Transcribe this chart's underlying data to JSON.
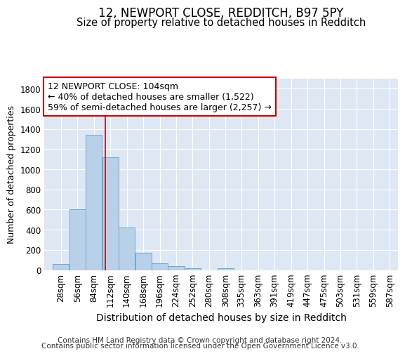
{
  "title1": "12, NEWPORT CLOSE, REDDITCH, B97 5PY",
  "title2": "Size of property relative to detached houses in Redditch",
  "xlabel": "Distribution of detached houses by size in Redditch",
  "ylabel": "Number of detached properties",
  "bin_labels": [
    "28sqm",
    "56sqm",
    "84sqm",
    "112sqm",
    "140sqm",
    "168sqm",
    "196sqm",
    "224sqm",
    "252sqm",
    "280sqm",
    "308sqm",
    "335sqm",
    "363sqm",
    "391sqm",
    "419sqm",
    "447sqm",
    "475sqm",
    "503sqm",
    "531sqm",
    "559sqm",
    "587sqm"
  ],
  "bin_lefts": [
    14,
    42,
    70,
    98,
    126,
    154,
    182,
    210,
    238,
    266,
    294,
    321,
    349,
    377,
    405,
    433,
    461,
    489,
    517,
    545,
    573
  ],
  "bin_width": 28,
  "bar_heights": [
    60,
    600,
    1340,
    1120,
    425,
    170,
    65,
    38,
    18,
    0,
    18,
    0,
    0,
    0,
    0,
    0,
    0,
    0,
    0,
    0,
    0
  ],
  "bar_color": "#b8d0e8",
  "bar_edge_color": "#6aaad4",
  "background_color": "#dde8f4",
  "grid_color": "#ffffff",
  "vline_x": 104,
  "vline_color": "#cc0000",
  "annotation_line1": "12 NEWPORT CLOSE: 104sqm",
  "annotation_line2": "← 40% of detached houses are smaller (1,522)",
  "annotation_line3": "59% of semi-detached houses are larger (2,257) →",
  "annotation_box_color": "#cc0000",
  "ylim": [
    0,
    1900
  ],
  "yticks": [
    0,
    200,
    400,
    600,
    800,
    1000,
    1200,
    1400,
    1600,
    1800
  ],
  "xlim_left": 0,
  "xlim_right": 601,
  "footnote_line1": "Contains HM Land Registry data © Crown copyright and database right 2024.",
  "footnote_line2": "Contains public sector information licensed under the Open Government Licence v3.0.",
  "title1_fontsize": 12,
  "title2_fontsize": 10.5,
  "xlabel_fontsize": 10,
  "ylabel_fontsize": 9,
  "tick_fontsize": 8.5,
  "annotation_fontsize": 9,
  "footnote_fontsize": 7.5
}
